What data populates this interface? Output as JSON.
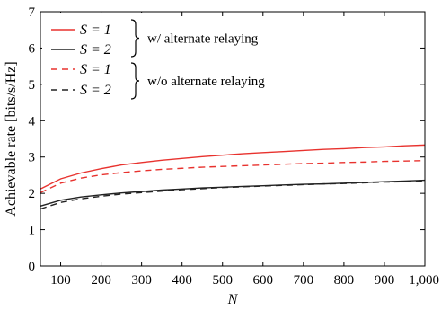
{
  "chart_data": {
    "type": "line",
    "xlabel": "N",
    "ylabel": "Achievable rate [bits/s/Hz]",
    "xlim": [
      50,
      1000
    ],
    "ylim": [
      0,
      7
    ],
    "xticks": [
      100,
      200,
      300,
      400,
      500,
      600,
      700,
      800,
      900,
      1000
    ],
    "xtick_labels": [
      "100",
      "200",
      "300",
      "400",
      "500",
      "600",
      "700",
      "800",
      "900",
      "1,000"
    ],
    "yticks": [
      0,
      1,
      2,
      3,
      4,
      5,
      6,
      7
    ],
    "ytick_labels": [
      "0",
      "1",
      "2",
      "3",
      "4",
      "5",
      "6",
      "7"
    ],
    "grid": false,
    "legend_placement": "top-left",
    "x": [
      50,
      100,
      150,
      200,
      250,
      300,
      350,
      400,
      450,
      500,
      550,
      600,
      650,
      700,
      750,
      800,
      850,
      900,
      950,
      1000
    ],
    "series": [
      {
        "name": "S = 1",
        "group": "w/ alternate relaying",
        "color": "#e8322e",
        "dash": "solid",
        "values": [
          2.12,
          2.4,
          2.56,
          2.68,
          2.78,
          2.85,
          2.91,
          2.96,
          3.01,
          3.05,
          3.09,
          3.12,
          3.15,
          3.18,
          3.21,
          3.23,
          3.26,
          3.28,
          3.31,
          3.33
        ]
      },
      {
        "name": "S = 2",
        "group": "w/ alternate relaying",
        "color": "#222222",
        "dash": "solid",
        "values": [
          1.65,
          1.81,
          1.9,
          1.96,
          2.01,
          2.05,
          2.09,
          2.12,
          2.15,
          2.17,
          2.19,
          2.21,
          2.23,
          2.25,
          2.26,
          2.28,
          2.3,
          2.32,
          2.34,
          2.36
        ]
      },
      {
        "name": "S = 1",
        "group": "w/o alternate relaying",
        "color": "#e8322e",
        "dash": "dashed",
        "values": [
          2.02,
          2.28,
          2.42,
          2.51,
          2.57,
          2.62,
          2.66,
          2.69,
          2.72,
          2.74,
          2.76,
          2.78,
          2.8,
          2.82,
          2.83,
          2.85,
          2.86,
          2.88,
          2.89,
          2.9
        ]
      },
      {
        "name": "S = 2",
        "group": "w/o alternate relaying",
        "color": "#222222",
        "dash": "dashed",
        "values": [
          1.57,
          1.75,
          1.85,
          1.92,
          1.98,
          2.02,
          2.06,
          2.1,
          2.13,
          2.16,
          2.18,
          2.2,
          2.22,
          2.24,
          2.26,
          2.27,
          2.29,
          2.31,
          2.32,
          2.34
        ]
      }
    ],
    "legend_groups": [
      {
        "label": "w/ alternate relaying",
        "series": [
          0,
          1
        ]
      },
      {
        "label": "w/o alternate relaying",
        "series": [
          2,
          3
        ]
      }
    ]
  }
}
